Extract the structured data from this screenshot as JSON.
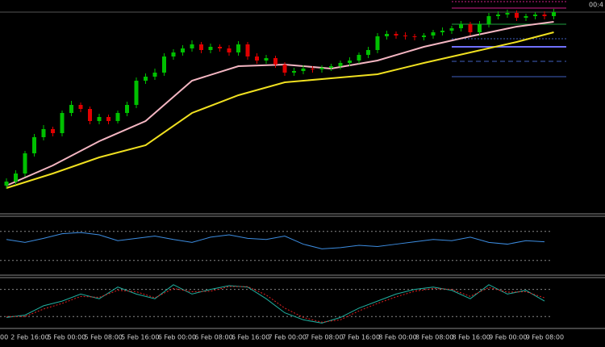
{
  "chart_data": [
    {
      "type": "candlestick",
      "clock": "00:4",
      "categories": [
        "00",
        "2 Feb 16:00",
        "5 Feb 00:00",
        "5 Feb 08:00",
        "5 Feb 16:00",
        "6 Feb 00:00",
        "6 Feb 08:00",
        "6 Feb 16:00",
        "7 Feb 00:00",
        "7 Feb 08:00",
        "7 Feb 16:00",
        "8 Feb 00:00",
        "8 Feb 08:00",
        "8 Feb 16:00",
        "9 Feb 00:00",
        "9 Feb 08:00"
      ],
      "up_color": "#00c000",
      "down_color": "#e00000",
      "ylim": [
        0,
        265
      ],
      "open": [
        35,
        40,
        50,
        75,
        95,
        105,
        100,
        125,
        135,
        130,
        115,
        120,
        115,
        125,
        135,
        165,
        170,
        175,
        195,
        200,
        205,
        210,
        203,
        207,
        205,
        200,
        210,
        195,
        190,
        193,
        185,
        175,
        177,
        180,
        179,
        181,
        183,
        187,
        190,
        197,
        203,
        220,
        223,
        221,
        220,
        219,
        221,
        225,
        227,
        230,
        235,
        225,
        235,
        245,
        247,
        249,
        243,
        245,
        247,
        245
      ],
      "high": [
        44,
        54,
        78,
        99,
        110,
        108,
        128,
        140,
        138,
        133,
        124,
        123,
        128,
        139,
        169,
        174,
        180,
        199,
        204,
        209,
        215,
        213,
        211,
        210,
        209,
        214,
        213,
        199,
        197,
        196,
        188,
        181,
        184,
        183,
        184,
        186,
        190,
        194,
        200,
        207,
        224,
        227,
        226,
        225,
        223,
        224,
        228,
        231,
        233,
        239,
        238,
        239,
        249,
        251,
        253,
        252,
        248,
        250,
        251,
        254
      ],
      "low": [
        31,
        36,
        46,
        71,
        91,
        96,
        96,
        121,
        126,
        111,
        111,
        111,
        112,
        121,
        131,
        161,
        166,
        171,
        191,
        196,
        201,
        199,
        199,
        201,
        196,
        196,
        191,
        186,
        186,
        181,
        171,
        171,
        173,
        175,
        175,
        177,
        179,
        183,
        186,
        193,
        199,
        216,
        217,
        216,
        215,
        215,
        217,
        221,
        223,
        226,
        221,
        221,
        231,
        241,
        243,
        239,
        239,
        241,
        241,
        241
      ],
      "close": [
        40,
        50,
        75,
        95,
        105,
        100,
        125,
        135,
        130,
        115,
        120,
        115,
        125,
        135,
        165,
        170,
        175,
        195,
        200,
        205,
        210,
        203,
        207,
        205,
        200,
        210,
        195,
        190,
        193,
        185,
        175,
        177,
        180,
        179,
        181,
        183,
        187,
        190,
        197,
        203,
        220,
        223,
        221,
        220,
        219,
        221,
        225,
        227,
        230,
        235,
        225,
        235,
        245,
        247,
        249,
        243,
        245,
        247,
        245,
        250
      ],
      "series": [
        {
          "color": "#f4b6c2",
          "x": [
            0,
            5,
            10,
            15,
            20,
            25,
            30,
            35,
            40,
            45,
            50,
            55,
            59
          ],
          "values": [
            35,
            60,
            90,
            115,
            165,
            183,
            185,
            180,
            190,
            207,
            220,
            232,
            238
          ]
        },
        {
          "color": "#f0e020",
          "x": [
            0,
            5,
            10,
            15,
            20,
            25,
            30,
            35,
            40,
            45,
            50,
            55,
            59
          ],
          "values": [
            32,
            50,
            70,
            85,
            125,
            147,
            163,
            168,
            173,
            187,
            200,
            213,
            225
          ]
        }
      ],
      "levels": [
        {
          "value": 263,
          "color": "#d0208a",
          "dash": "2,2"
        },
        {
          "value": 255,
          "color": "#d0208a",
          "dash": "none"
        },
        {
          "value": 235,
          "color": "#20a040",
          "dash": "none"
        },
        {
          "value": 217,
          "color": "#4060c0",
          "dash": "2,2"
        },
        {
          "value": 207,
          "color": "#7070ff",
          "dash": "none"
        },
        {
          "value": 189,
          "color": "#4060c0",
          "dash": "6,4"
        },
        {
          "value": 170,
          "color": "#4060c0",
          "dash": "none"
        }
      ]
    },
    {
      "type": "line",
      "ylim": [
        0,
        100
      ],
      "levels": [
        74,
        24
      ],
      "x": [
        0,
        2,
        4,
        6,
        8,
        10,
        12,
        14,
        16,
        18,
        20,
        22,
        24,
        26,
        28,
        30,
        32,
        34,
        36,
        38,
        40,
        42,
        44,
        46,
        48,
        50,
        52,
        54,
        56,
        58
      ],
      "series": [
        {
          "color": "#3c8ce0",
          "values": [
            60,
            55,
            62,
            70,
            72,
            68,
            58,
            62,
            66,
            60,
            55,
            64,
            68,
            62,
            60,
            66,
            52,
            44,
            46,
            50,
            48,
            52,
            56,
            60,
            58,
            64,
            55,
            52,
            58,
            56
          ]
        }
      ]
    },
    {
      "type": "line",
      "ylim": [
        0,
        100
      ],
      "levels": [
        80,
        22
      ],
      "x": [
        0,
        2,
        4,
        6,
        8,
        10,
        12,
        14,
        16,
        18,
        20,
        22,
        24,
        26,
        28,
        30,
        32,
        34,
        36,
        38,
        40,
        42,
        44,
        46,
        48,
        50,
        52,
        54,
        56,
        58
      ],
      "series": [
        {
          "color": "#20b0a0",
          "values": [
            20,
            25,
            45,
            55,
            70,
            60,
            85,
            70,
            60,
            90,
            70,
            80,
            88,
            85,
            60,
            30,
            15,
            8,
            20,
            40,
            55,
            70,
            80,
            85,
            78,
            60,
            90,
            70,
            78,
            55
          ]
        },
        {
          "color": "#e02020",
          "dash": "2,2",
          "values": [
            22,
            22,
            38,
            50,
            65,
            63,
            78,
            75,
            62,
            82,
            75,
            76,
            86,
            86,
            68,
            40,
            20,
            10,
            15,
            34,
            50,
            64,
            76,
            82,
            80,
            65,
            84,
            74,
            75,
            62
          ]
        }
      ]
    }
  ]
}
